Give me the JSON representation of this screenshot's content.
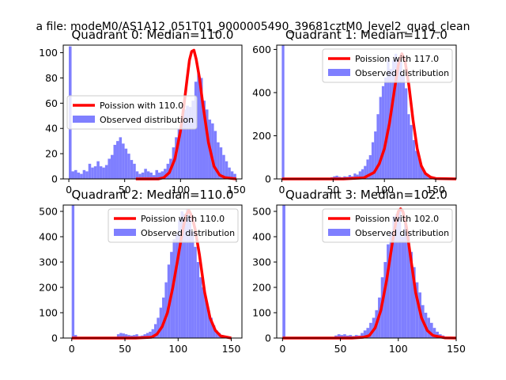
{
  "suptitle": "a file: modeM0/AS1A12_051T01_9000005490_39681cztM0_level2_quad_clean",
  "colors": {
    "hist": "#7f7fff",
    "line": "#ff0000",
    "axis": "#000000"
  },
  "legend_labels": {
    "observed": "Observed distribution"
  },
  "chart_data": [
    {
      "type": "bar",
      "title": "Quadrant 0: Median=110.0",
      "median": 110.0,
      "poisson_label": "Poission with 110.0",
      "legend_position": "center-left",
      "xlim": [
        -5,
        155
      ],
      "ylim": [
        0,
        106
      ],
      "xticks": [
        0,
        50,
        100,
        150
      ],
      "yticks": [
        0,
        20,
        40,
        60,
        80,
        100
      ],
      "bin_width": 2.5,
      "hist_centers": [
        1.2,
        3.7,
        6.2,
        8.7,
        11.2,
        13.7,
        16.2,
        18.7,
        21.2,
        23.7,
        26.2,
        28.7,
        31.2,
        33.7,
        36.2,
        38.7,
        41.2,
        43.7,
        46.2,
        48.7,
        51.2,
        53.7,
        56.2,
        58.7,
        61.2,
        63.7,
        66.2,
        68.7,
        71.2,
        73.7,
        76.2,
        78.7,
        81.2,
        83.7,
        86.2,
        88.7,
        91.2,
        93.7,
        96.2,
        98.7,
        101.2,
        103.7,
        106.2,
        108.7,
        111.2,
        113.7,
        116.2,
        118.7,
        121.2,
        123.7,
        126.2,
        128.7,
        131.2,
        133.7,
        136.2,
        138.7,
        141.2,
        143.7,
        146.2,
        148.7
      ],
      "hist_values": [
        105,
        6,
        7,
        5,
        4,
        7,
        6,
        12,
        9,
        10,
        14,
        10,
        9,
        11,
        16,
        19,
        27,
        30,
        33,
        28,
        24,
        20,
        15,
        12,
        6,
        4,
        5,
        8,
        6,
        5,
        3,
        7,
        5,
        6,
        8,
        12,
        16,
        25,
        33,
        40,
        47,
        55,
        58,
        57,
        62,
        77,
        84,
        80,
        62,
        55,
        47,
        44,
        38,
        29,
        25,
        19,
        14,
        9,
        6,
        4
      ],
      "poisson": {
        "x": [
          60,
          70,
          80,
          85,
          90,
          95,
          100,
          103,
          106,
          108,
          110,
          112,
          114,
          117,
          120,
          125,
          130,
          135,
          140,
          150
        ],
        "y": [
          0,
          0,
          0,
          1,
          5,
          16,
          38,
          58,
          80,
          94,
          101,
          102,
          95,
          80,
          59,
          29,
          10,
          3,
          1,
          0
        ]
      }
    },
    {
      "type": "bar",
      "title": "Quadrant 1: Median=117.0",
      "median": 117.0,
      "poisson_label": "Poission with 117.0",
      "legend_position": "top-right",
      "xlim": [
        -5,
        170
      ],
      "ylim": [
        0,
        620
      ],
      "xticks": [
        0,
        50,
        100,
        150
      ],
      "yticks": [
        0,
        200,
        400,
        600
      ],
      "bin_width": 2.5,
      "hist_centers": [
        1.2,
        46.2,
        48.7,
        51.2,
        53.7,
        56.2,
        58.7,
        61.2,
        63.7,
        66.2,
        68.7,
        71.2,
        73.7,
        76.2,
        78.7,
        81.2,
        83.7,
        86.2,
        88.7,
        91.2,
        93.7,
        96.2,
        98.7,
        101.2,
        103.7,
        106.2,
        108.7,
        111.2,
        113.7,
        116.2,
        118.7,
        121.2,
        123.7,
        126.2,
        128.7,
        131.2,
        133.7,
        136.2,
        138.7,
        141.2,
        143.7,
        146.2,
        148.7,
        151.2
      ],
      "hist_values": [
        620,
        5,
        8,
        12,
        15,
        10,
        8,
        12,
        10,
        18,
        12,
        25,
        20,
        35,
        45,
        60,
        90,
        110,
        170,
        220,
        300,
        380,
        430,
        470,
        560,
        510,
        550,
        580,
        520,
        545,
        480,
        420,
        300,
        250,
        180,
        130,
        100,
        60,
        40,
        25,
        15,
        8,
        5,
        3
      ],
      "poisson": {
        "x": [
          0,
          60,
          80,
          90,
          95,
          100,
          105,
          110,
          114,
          117,
          120,
          124,
          128,
          132,
          136,
          140,
          145,
          150,
          170
        ],
        "y": [
          0,
          0,
          5,
          30,
          70,
          140,
          260,
          420,
          540,
          580,
          550,
          430,
          270,
          140,
          60,
          25,
          8,
          2,
          0
        ]
      }
    },
    {
      "type": "bar",
      "title": "Quadrant 2: Median=110.0",
      "median": 110.0,
      "poisson_label": "Poission with 110.0",
      "legend_position": "top-right",
      "xlim": [
        -8,
        160
      ],
      "ylim": [
        0,
        525
      ],
      "xticks": [
        0,
        50,
        100,
        150
      ],
      "yticks": [
        0,
        100,
        200,
        300,
        400,
        500
      ],
      "bin_width": 2.5,
      "hist_centers": [
        1.2,
        3.7,
        43.7,
        46.2,
        48.7,
        51.2,
        53.7,
        56.2,
        58.7,
        61.2,
        63.7,
        66.2,
        68.7,
        71.2,
        73.7,
        76.2,
        78.7,
        81.2,
        83.7,
        86.2,
        88.7,
        91.2,
        93.7,
        96.2,
        98.7,
        101.2,
        103.7,
        106.2,
        108.7,
        111.2,
        113.7,
        116.2,
        118.7,
        121.2,
        123.7,
        126.2,
        128.7,
        131.2,
        133.7,
        136.2,
        138.7,
        141.2,
        143.7,
        146.2
      ],
      "hist_values": [
        525,
        12,
        15,
        20,
        18,
        15,
        12,
        10,
        12,
        15,
        8,
        10,
        15,
        20,
        25,
        35,
        55,
        80,
        120,
        160,
        220,
        290,
        340,
        390,
        410,
        470,
        500,
        490,
        510,
        480,
        420,
        360,
        300,
        240,
        200,
        150,
        110,
        80,
        50,
        30,
        20,
        12,
        8,
        5
      ],
      "poisson": {
        "x": [
          0,
          60,
          75,
          80,
          85,
          90,
          95,
          100,
          104,
          107,
          110,
          113,
          116,
          120,
          125,
          130,
          135,
          140,
          150
        ],
        "y": [
          0,
          0,
          3,
          15,
          45,
          100,
          200,
          320,
          420,
          480,
          505,
          480,
          430,
          330,
          180,
          80,
          30,
          8,
          0
        ]
      }
    },
    {
      "type": "bar",
      "title": "Quadrant 3: Median=102.0",
      "median": 102.0,
      "poisson_label": "Poission with 102.0",
      "legend_position": "top-right",
      "xlim": [
        -5,
        150
      ],
      "ylim": [
        0,
        525
      ],
      "xticks": [
        0,
        50,
        100,
        150
      ],
      "yticks": [
        0,
        100,
        200,
        300,
        400,
        500
      ],
      "bin_width": 2.5,
      "hist_centers": [
        1.2,
        46.2,
        48.7,
        51.2,
        53.7,
        56.2,
        58.7,
        61.2,
        63.7,
        66.2,
        68.7,
        71.2,
        73.7,
        76.2,
        78.7,
        81.2,
        83.7,
        86.2,
        88.7,
        91.2,
        93.7,
        96.2,
        98.7,
        101.2,
        103.7,
        106.2,
        108.7,
        111.2,
        113.7,
        116.2,
        118.7,
        121.2,
        123.7,
        126.2,
        128.7,
        131.2,
        133.7,
        136.2,
        138.7,
        141.2
      ],
      "hist_values": [
        525,
        10,
        15,
        12,
        15,
        10,
        12,
        8,
        12,
        10,
        20,
        30,
        40,
        60,
        80,
        110,
        160,
        240,
        300,
        370,
        420,
        480,
        490,
        505,
        400,
        470,
        420,
        340,
        280,
        220,
        180,
        130,
        100,
        80,
        60,
        40,
        25,
        15,
        10,
        5
      ],
      "poisson": {
        "x": [
          0,
          60,
          70,
          75,
          80,
          85,
          90,
          95,
          98,
          100,
          102,
          104,
          107,
          110,
          115,
          120,
          125,
          130,
          140,
          150
        ],
        "y": [
          0,
          0,
          3,
          10,
          40,
          110,
          230,
          380,
          460,
          500,
          510,
          500,
          440,
          340,
          180,
          80,
          30,
          10,
          1,
          0
        ]
      }
    }
  ]
}
